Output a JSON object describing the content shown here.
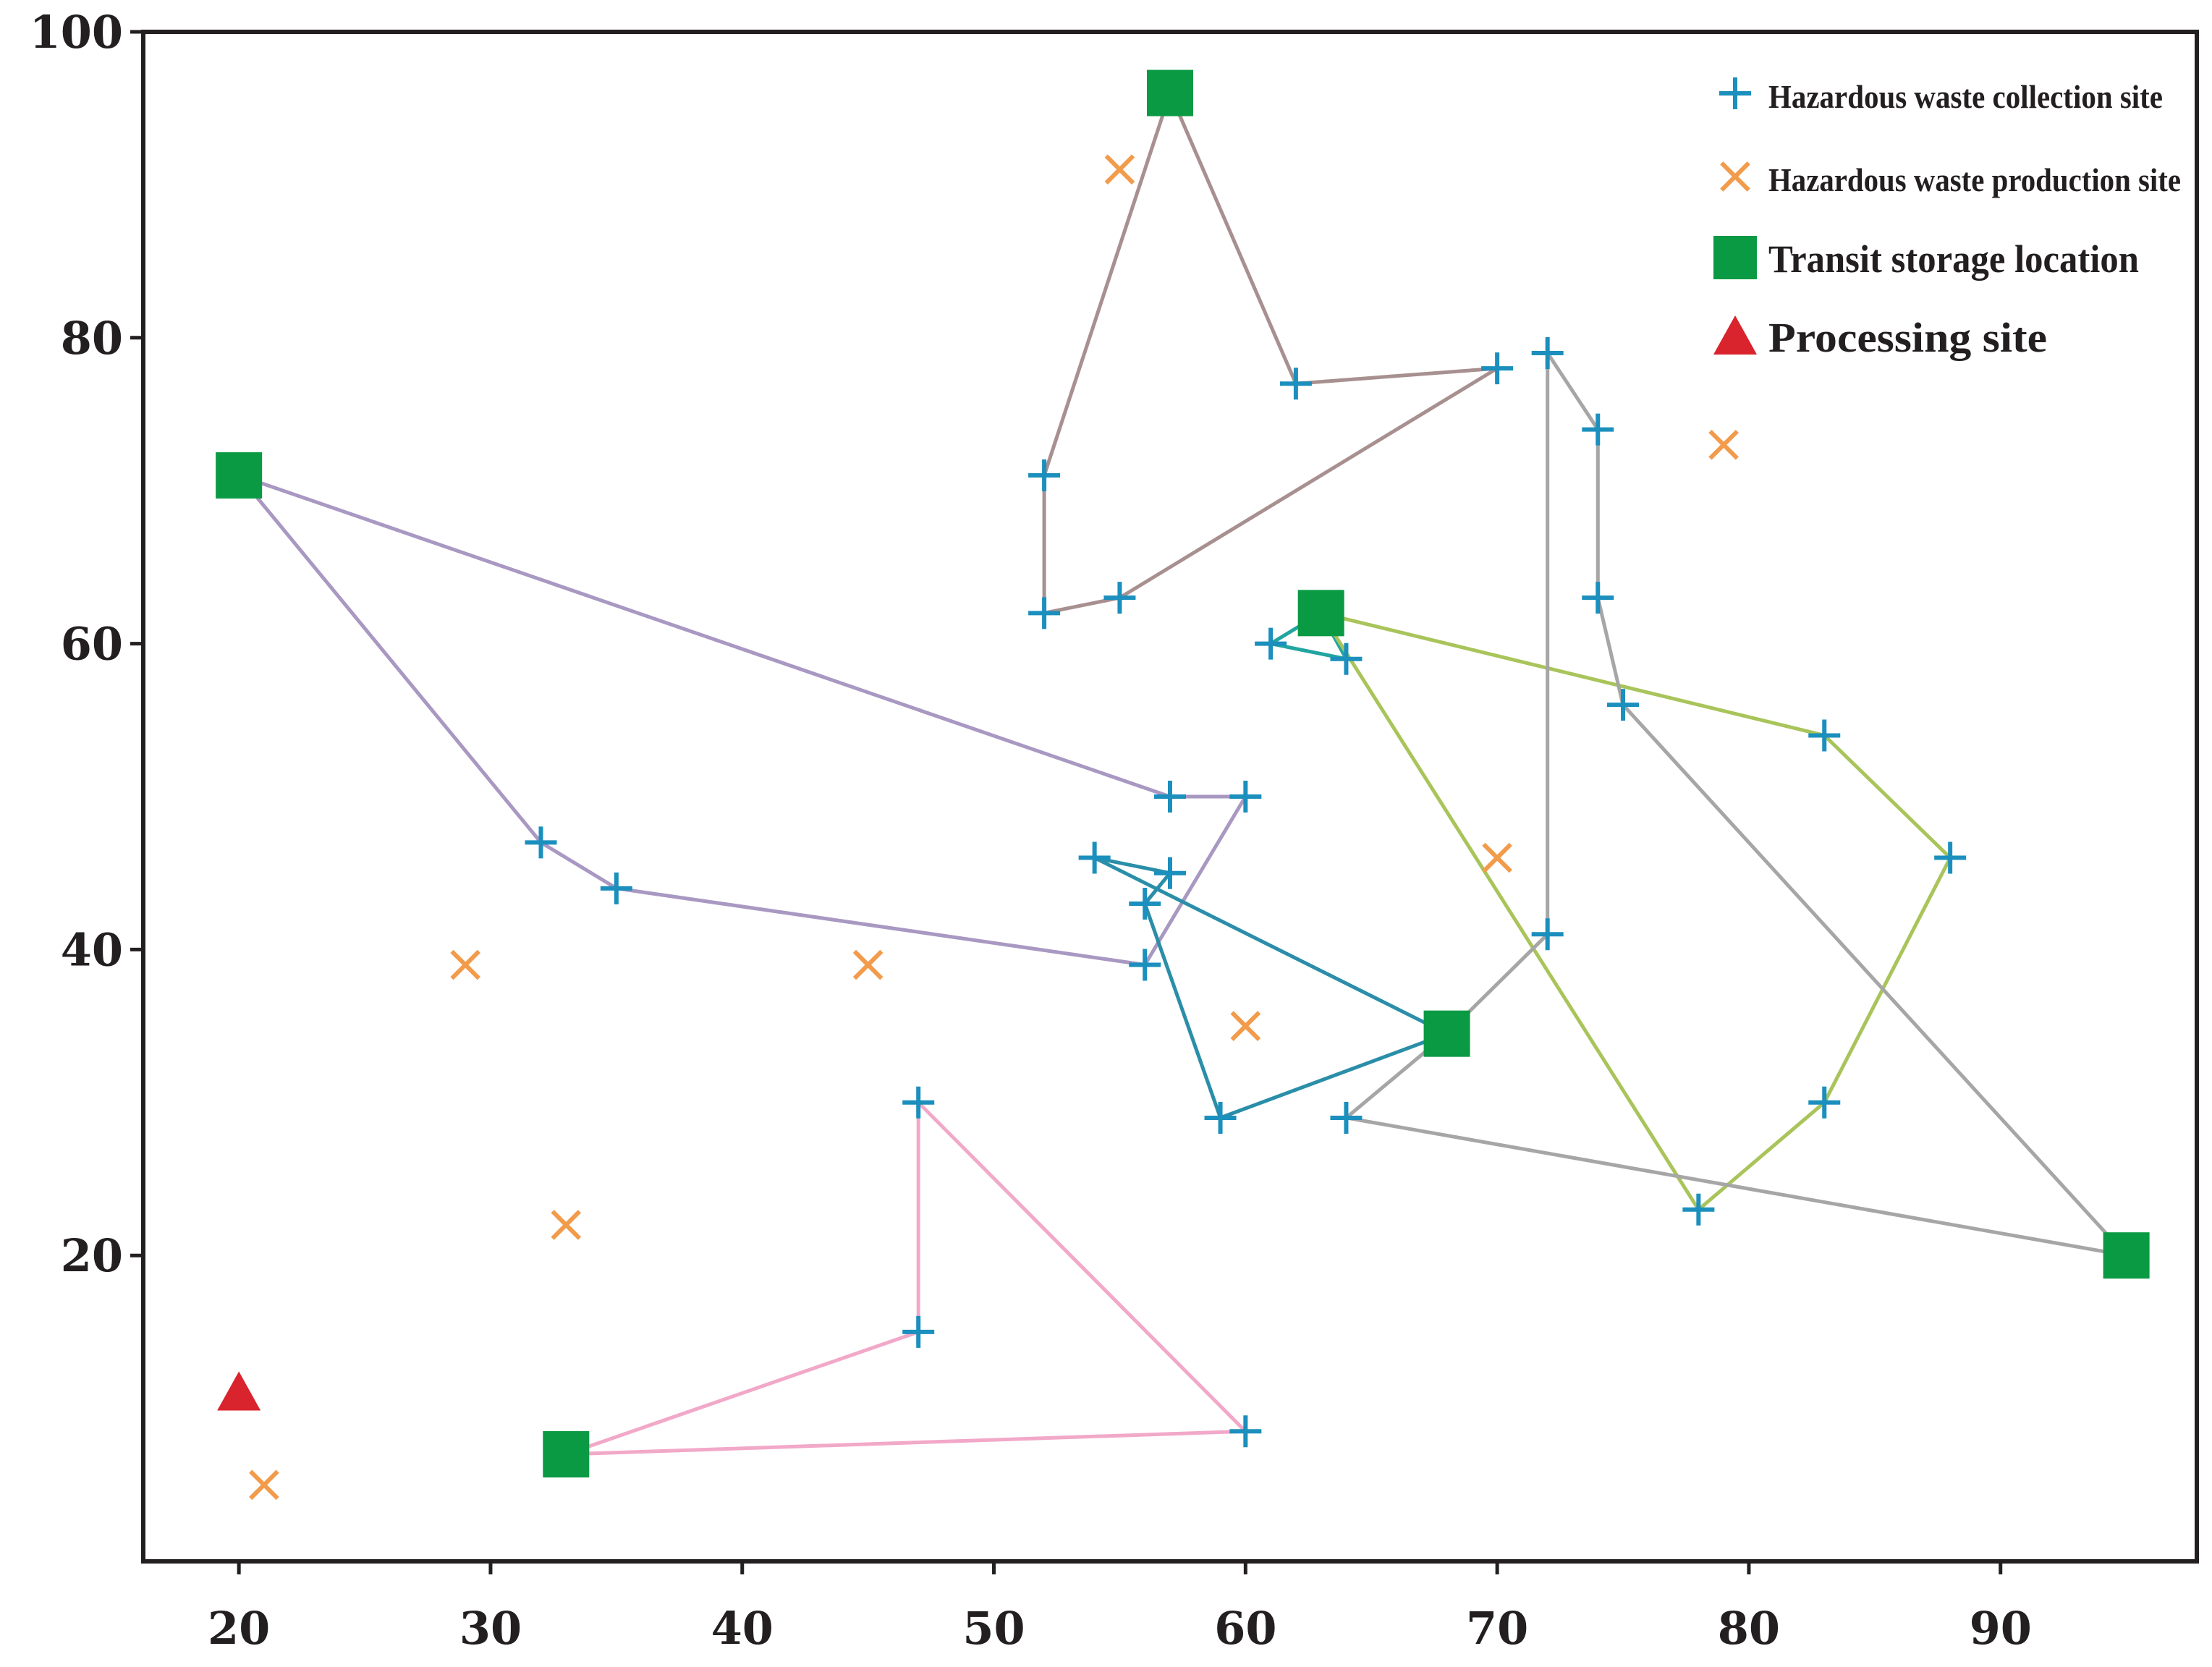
{
  "chart_data": {
    "type": "scatter",
    "title": "",
    "xlabel": "",
    "ylabel": "",
    "xlim": [
      16.2,
      97.8
    ],
    "ylim": [
      0,
      100
    ],
    "x_ticks": [
      20,
      30,
      40,
      50,
      60,
      70,
      80,
      90
    ],
    "y_ticks": [
      20,
      40,
      60,
      80,
      100
    ],
    "x_tick_labels": [
      "20",
      "30",
      "40",
      "50",
      "60",
      "70",
      "80",
      "90"
    ],
    "y_tick_labels": [
      "20",
      "40",
      "60",
      "80",
      "100"
    ],
    "grid": false,
    "legend_position": "top-right",
    "legend": [
      {
        "key": "collection",
        "label": "Hazardous waste collection site"
      },
      {
        "key": "production",
        "label": "Hazardous waste production site"
      },
      {
        "key": "transit",
        "label": "Transit storage location"
      },
      {
        "key": "processing",
        "label": "Processing site"
      }
    ],
    "colors": {
      "collection": "#1b8fbd",
      "production": "#f29b4b",
      "transit": "#0a9a43",
      "processing": "#d9232d",
      "axis": "#231f20"
    },
    "series": [
      {
        "name": "Hazardous waste collection site",
        "key": "collection",
        "marker": "plus",
        "points": [
          [
            52,
            71
          ],
          [
            52,
            62
          ],
          [
            55,
            63
          ],
          [
            62,
            77
          ],
          [
            70,
            78
          ],
          [
            72,
            79
          ],
          [
            74,
            74
          ],
          [
            74,
            63
          ],
          [
            75,
            56
          ],
          [
            61,
            60
          ],
          [
            64,
            59
          ],
          [
            83,
            54
          ],
          [
            88,
            46
          ],
          [
            83,
            30
          ],
          [
            78,
            23
          ],
          [
            72,
            41
          ],
          [
            64,
            29
          ],
          [
            57,
            50
          ],
          [
            60,
            50
          ],
          [
            32,
            47
          ],
          [
            35,
            44
          ],
          [
            56,
            39
          ],
          [
            54,
            46
          ],
          [
            56,
            43
          ],
          [
            57,
            45
          ],
          [
            59,
            29
          ],
          [
            47,
            30
          ],
          [
            47,
            15
          ],
          [
            60,
            8.5
          ]
        ]
      },
      {
        "name": "Hazardous waste production site",
        "key": "production",
        "marker": "x",
        "points": [
          [
            55,
            91
          ],
          [
            79,
            73
          ],
          [
            70,
            46
          ],
          [
            29,
            39
          ],
          [
            45,
            39
          ],
          [
            60,
            35
          ],
          [
            33,
            22
          ],
          [
            21,
            5
          ]
        ]
      },
      {
        "name": "Transit storage location",
        "key": "transit",
        "marker": "square",
        "points": [
          [
            57,
            96
          ],
          [
            20,
            71
          ],
          [
            63,
            62
          ],
          [
            68,
            34.5
          ],
          [
            95,
            20
          ],
          [
            33,
            7
          ]
        ]
      },
      {
        "name": "Processing site",
        "key": "processing",
        "marker": "triangle",
        "points": [
          [
            20,
            11
          ]
        ]
      }
    ],
    "routes": [
      {
        "name": "route-brown",
        "color": "#a89090",
        "points": [
          [
            57,
            96
          ],
          [
            62,
            77
          ],
          [
            70,
            78
          ],
          [
            55,
            63
          ],
          [
            52,
            62
          ],
          [
            52,
            71
          ],
          [
            57,
            96
          ]
        ]
      },
      {
        "name": "route-purple",
        "color": "#a898c2",
        "points": [
          [
            20,
            71
          ],
          [
            57,
            50
          ],
          [
            60,
            50
          ],
          [
            56,
            39
          ],
          [
            35,
            44
          ],
          [
            32,
            47
          ],
          [
            20,
            71
          ]
        ]
      },
      {
        "name": "route-teal-north",
        "color": "#22a5a0",
        "points": [
          [
            63,
            62
          ],
          [
            61,
            60
          ],
          [
            64,
            59
          ],
          [
            63,
            62
          ]
        ]
      },
      {
        "name": "route-yellowgreen",
        "color": "#a9c45a",
        "points": [
          [
            63,
            62
          ],
          [
            83,
            54
          ],
          [
            88,
            46
          ],
          [
            83,
            30
          ],
          [
            78,
            23
          ],
          [
            63,
            62
          ]
        ]
      },
      {
        "name": "route-blue",
        "color": "#2a8ea8",
        "points": [
          [
            68,
            34.5
          ],
          [
            54,
            46
          ],
          [
            57,
            45
          ],
          [
            56,
            43
          ],
          [
            59,
            29
          ],
          [
            68,
            34.5
          ]
        ]
      },
      {
        "name": "route-gray",
        "color": "#a6a6a6",
        "points": [
          [
            95,
            20
          ],
          [
            64,
            29
          ],
          [
            68,
            34.5
          ],
          [
            72,
            41
          ],
          [
            72,
            79
          ],
          [
            74,
            74
          ],
          [
            74,
            63
          ],
          [
            75,
            56
          ],
          [
            95,
            20
          ]
        ]
      },
      {
        "name": "route-pink",
        "color": "#f2a8c8",
        "points": [
          [
            33,
            7
          ],
          [
            47,
            15
          ],
          [
            47,
            30
          ],
          [
            60,
            8.5
          ],
          [
            33,
            7
          ]
        ]
      }
    ]
  }
}
